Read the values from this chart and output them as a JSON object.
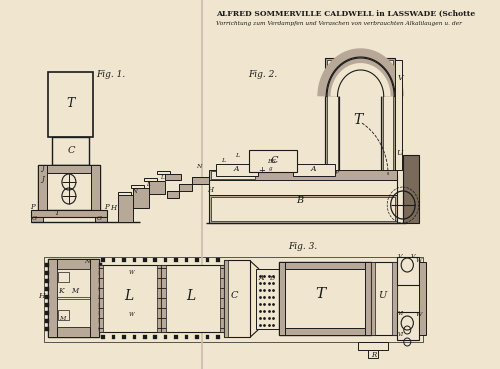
{
  "bg_color": "#f0e6d0",
  "line_color": "#1a1a1a",
  "title1": "ALFRED SOMMERVILLE CALDWELL in LASSWADE (Schotte",
  "title2": "Vorrichtung zum Verdampfen und Veraschen von verbrauchten Alkalilaugen u. der",
  "fig1_label": "Fig. 1.",
  "fig2_label": "Fig. 2.",
  "fig3_label": "Fig. 3.",
  "dark_fill": "#7a6a5a",
  "med_fill": "#b8a898",
  "light_fill": "#f0e6d0",
  "hatch_fill": "#c8b8a0"
}
